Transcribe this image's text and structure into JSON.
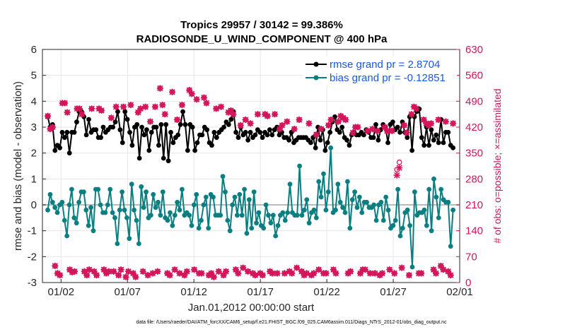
{
  "chart_data": {
    "type": "line",
    "title": "Tropics 29957 / 30142 = 99.386%",
    "subtitle": "RADIOSONDE_U_WIND_COMPONENT @ 400 hPa",
    "xlabel": "Jan.01,2012 00:00:00 start",
    "ylabel": "rmse and bias (model - observation)",
    "ylabel_right": "# of obs: o=possible; ×=assimilated",
    "footer": "data file: /Users/raeder/DAI/ATM_forcXX/CAM6_setup/f.e21.FHIST_BGC.f09_025.CAM6assim.011/Diags_NTrS_2012-01/obs_diag_output.nc",
    "xlim": [
      0.6,
      32.0
    ],
    "ylim": [
      -3,
      6
    ],
    "ylim_right": [
      0,
      630
    ],
    "yticks": [
      -3,
      -2,
      -1,
      0,
      1,
      2,
      3,
      4,
      5,
      6
    ],
    "yticks_right": [
      0,
      70,
      140,
      210,
      280,
      350,
      420,
      490,
      560,
      630
    ],
    "xticks": [
      {
        "value": 2,
        "label": "01/02"
      },
      {
        "value": 7,
        "label": "01/07"
      },
      {
        "value": 12,
        "label": "01/12"
      },
      {
        "value": 17,
        "label": "01/17"
      },
      {
        "value": 22,
        "label": "01/22"
      },
      {
        "value": 27,
        "label": "01/27"
      },
      {
        "value": 32,
        "label": "02/01"
      }
    ],
    "x_start": 1.0,
    "x_step": 0.25,
    "series": [
      {
        "name": "rmse",
        "legend": "rmse grand pr = 2.8704",
        "color": "#000000",
        "axis": "left",
        "values": [
          3.4,
          3.0,
          3.1,
          2.1,
          2.3,
          2.2,
          2.8,
          2.6,
          2.8,
          2.0,
          2.8,
          2.8,
          3.2,
          3.6,
          3.6,
          3.4,
          2.7,
          3.3,
          2.8,
          2.9,
          2.9,
          2.6,
          2.6,
          3.0,
          2.8,
          2.9,
          3.0,
          3.0,
          3.2,
          3.6,
          2.9,
          2.4,
          3.6,
          3.3,
          2.8,
          2.3,
          3.0,
          3.1,
          1.8,
          3.0,
          2.7,
          2.9,
          2.1,
          2.8,
          3.0,
          3.0,
          2.3,
          3.1,
          1.8,
          3.1,
          1.7,
          2.8,
          2.4,
          2.6,
          2.7,
          3.1,
          3.6,
          3.1,
          2.1,
          3.1,
          3.0,
          2.1,
          2.4,
          2.7,
          2.7,
          3.0,
          2.9,
          2.4,
          2.3,
          2.8,
          2.6,
          2.8,
          2.9,
          3.0,
          3.2,
          3.1,
          3.3,
          3.6,
          2.8,
          2.6,
          3.0,
          2.7,
          2.8,
          2.5,
          2.8,
          2.6,
          2.7,
          2.9,
          2.8,
          2.6,
          2.8,
          2.7,
          2.9,
          2.7,
          2.9,
          3.0,
          2.7,
          2.8,
          2.6,
          2.6,
          2.5,
          2.8,
          2.4,
          2.5,
          2.6,
          2.6,
          2.6,
          2.6,
          2.5,
          2.4,
          2.6,
          2.2,
          3.0,
          2.5,
          2.9,
          2.1,
          2.4,
          2.8,
          3.2,
          3.4,
          2.9,
          2.8,
          3.0,
          2.6,
          2.5,
          2.3,
          2.7,
          2.8,
          2.7,
          2.7,
          2.8,
          2.7,
          2.9,
          2.8,
          2.6,
          2.6,
          3.1,
          2.5,
          2.9,
          3.1,
          3.0,
          2.4,
          3.1,
          3.2,
          2.9,
          3.0,
          2.8,
          3.2,
          2.8,
          2.6,
          3.4,
          2.1,
          3.4,
          3.6,
          3.7,
          2.6,
          2.3,
          3.0,
          2.3,
          2.9,
          2.5,
          2.7,
          2.4,
          3.3,
          2.4,
          2.8,
          2.8,
          2.3,
          2.2
        ]
      },
      {
        "name": "bias",
        "legend": "bias grand pr = -0.12851",
        "color": "#0a7f82",
        "axis": "left",
        "values": [
          -0.2,
          0.4,
          0.1,
          -0.1,
          -0.3,
          0.0,
          0.1,
          -0.6,
          -1.2,
          0.0,
          0.6,
          -0.5,
          -0.7,
          0.1,
          0.5,
          0.5,
          -0.2,
          -0.8,
          -0.1,
          -1.0,
          0.6,
          0.6,
          0.0,
          -0.3,
          -0.3,
          0.0,
          0.6,
          -0.3,
          -0.5,
          -1.5,
          -0.2,
          0.5,
          -0.2,
          -0.5,
          -1.3,
          0.8,
          -0.2,
          -0.6,
          -1.5,
          0.7,
          -0.1,
          0.5,
          -0.5,
          -0.4,
          0.4,
          -0.1,
          0.1,
          -0.4,
          0.5,
          -0.5,
          -0.6,
          -0.3,
          -0.8,
          -0.4,
          0.1,
          -0.2,
          0.6,
          -0.4,
          -0.3,
          -0.4,
          -0.8,
          0.0,
          0.4,
          -0.9,
          -0.6,
          0.0,
          0.3,
          -0.9,
          0.4,
          0.3,
          -0.4,
          -0.4,
          -0.4,
          1.1,
          0.5,
          -0.6,
          -1.0,
          0.0,
          0.3,
          -0.4,
          0.4,
          -0.4,
          0.6,
          -1.1,
          0.2,
          -0.9,
          0.5,
          -0.7,
          -0.3,
          -0.8,
          -0.9,
          0.0,
          -0.4,
          -0.7,
          -0.4,
          -1.2,
          -0.8,
          -0.4,
          -0.3,
          -0.6,
          -0.3,
          0.8,
          -0.3,
          -0.4,
          -0.4,
          1.5,
          -0.4,
          -0.2,
          0.2,
          -0.7,
          -0.3,
          -0.2,
          -0.5,
          0.9,
          0.3,
          1.2,
          -0.2,
          0.5,
          2.2,
          -0.3,
          -0.2,
          0.8,
          0.1,
          -0.1,
          -0.3,
          0.9,
          -0.9,
          0.2,
          0.5,
          -0.1,
          0.3,
          -0.3,
          0.1,
          0.1,
          -0.1,
          -0.1,
          0.0,
          -0.6,
          0.0,
          0.1,
          -0.6,
          0.3,
          -0.2,
          -0.9,
          -0.8,
          -0.6,
          0.6,
          -1.2,
          -0.9,
          -0.3,
          -0.2,
          -0.8,
          -2.4,
          0.5,
          -0.4,
          -0.3,
          -0.3,
          -0.2,
          -0.8,
          0.6,
          -1.0,
          1.0,
          0.3,
          -0.5,
          0.6,
          0.2,
          0.1,
          0.1,
          -1.6,
          -0.2
        ]
      },
      {
        "name": "obs possible",
        "color": "#d4145a",
        "axis": "right",
        "marker": "o",
        "values": [
          450,
          415,
          420,
          45,
          25,
          20,
          485,
          485,
          460,
          35,
          28,
          30,
          470,
          470,
          455,
          30,
          20,
          35,
          470,
          30,
          20,
          470,
          465,
          35,
          25,
          30,
          445,
          30,
          475,
          20,
          35,
          475,
          15,
          30,
          480,
          25,
          15,
          460,
          470,
          30,
          475,
          20,
          435,
          25,
          475,
          30,
          525,
          480,
          455,
          25,
          20,
          515,
          35,
          440,
          25,
          480,
          20,
          30,
          520,
          510,
          35,
          495,
          25,
          25,
          500,
          485,
          20,
          25,
          15,
          470,
          30,
          475,
          20,
          30,
          460,
          465,
          455,
          35,
          25,
          425,
          40,
          440,
          30,
          430,
          25,
          20,
          455,
          25,
          20,
          455,
          450,
          30,
          25,
          455,
          25,
          415,
          425,
          25,
          435,
          30,
          25,
          415,
          40,
          440,
          30,
          20,
          25,
          430,
          20,
          25,
          400,
          35,
          415,
          25,
          25,
          425,
          440,
          35,
          25,
          435,
          450,
          445,
          440,
          25,
          30,
          405,
          420,
          420,
          25,
          35,
          35,
          410,
          25,
          415,
          25,
          410,
          20,
          25,
          420,
          410,
          35,
          410,
          25,
          305,
          325,
          40,
          425,
          405,
          20,
          455,
          475,
          470,
          25,
          25,
          440,
          430,
          425,
          430,
          35,
          25,
          440,
          45,
          35,
          435,
          30,
          20,
          430
        ]
      },
      {
        "name": "obs assimilated",
        "color": "#d4145a",
        "axis": "right",
        "marker": "x",
        "values": [
          450,
          415,
          420,
          45,
          25,
          20,
          485,
          485,
          460,
          35,
          28,
          30,
          470,
          470,
          455,
          30,
          20,
          35,
          470,
          30,
          20,
          470,
          465,
          35,
          25,
          30,
          445,
          30,
          475,
          20,
          35,
          475,
          15,
          30,
          480,
          25,
          15,
          460,
          470,
          30,
          475,
          20,
          435,
          25,
          475,
          30,
          525,
          480,
          455,
          25,
          20,
          515,
          35,
          440,
          25,
          480,
          20,
          30,
          520,
          510,
          35,
          495,
          25,
          25,
          500,
          485,
          20,
          25,
          15,
          470,
          30,
          475,
          20,
          30,
          460,
          465,
          455,
          35,
          25,
          425,
          40,
          440,
          30,
          430,
          25,
          20,
          455,
          25,
          20,
          455,
          450,
          30,
          25,
          455,
          25,
          415,
          425,
          25,
          435,
          30,
          25,
          415,
          40,
          440,
          30,
          20,
          25,
          430,
          20,
          25,
          400,
          35,
          415,
          25,
          25,
          425,
          440,
          35,
          25,
          435,
          450,
          445,
          440,
          25,
          30,
          405,
          420,
          420,
          25,
          35,
          35,
          410,
          25,
          415,
          25,
          410,
          20,
          25,
          420,
          410,
          35,
          410,
          25,
          290,
          310,
          40,
          425,
          405,
          20,
          455,
          475,
          470,
          25,
          25,
          440,
          430,
          425,
          430,
          35,
          25,
          440,
          45,
          35,
          435,
          30,
          20,
          430
        ]
      }
    ],
    "x_rmse_end": 31.5,
    "x_bias_end": 31.5
  }
}
